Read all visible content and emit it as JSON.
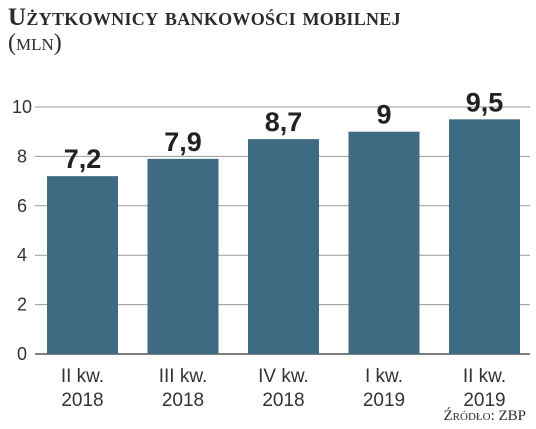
{
  "title": "Użytkownicy bankowości mobilnej",
  "subtitle": "(mln)",
  "source": "Źródło: ZBP",
  "colors": {
    "bar": "#3e6b82",
    "grid": "#9a9a9a"
  },
  "chart_data": {
    "type": "bar",
    "categories": [
      [
        "II kw.",
        "2018"
      ],
      [
        "III kw.",
        "2018"
      ],
      [
        "IV kw.",
        "2018"
      ],
      [
        "I kw.",
        "2019"
      ],
      [
        "II kw.",
        "2019"
      ]
    ],
    "values": [
      7.2,
      7.9,
      8.7,
      9,
      9.5
    ],
    "value_labels": [
      "7,2",
      "7,9",
      "8,7",
      "9",
      "9,5"
    ],
    "yticks": [
      0,
      2,
      4,
      6,
      8,
      10
    ],
    "ylim": [
      0,
      10
    ],
    "grid": true
  }
}
